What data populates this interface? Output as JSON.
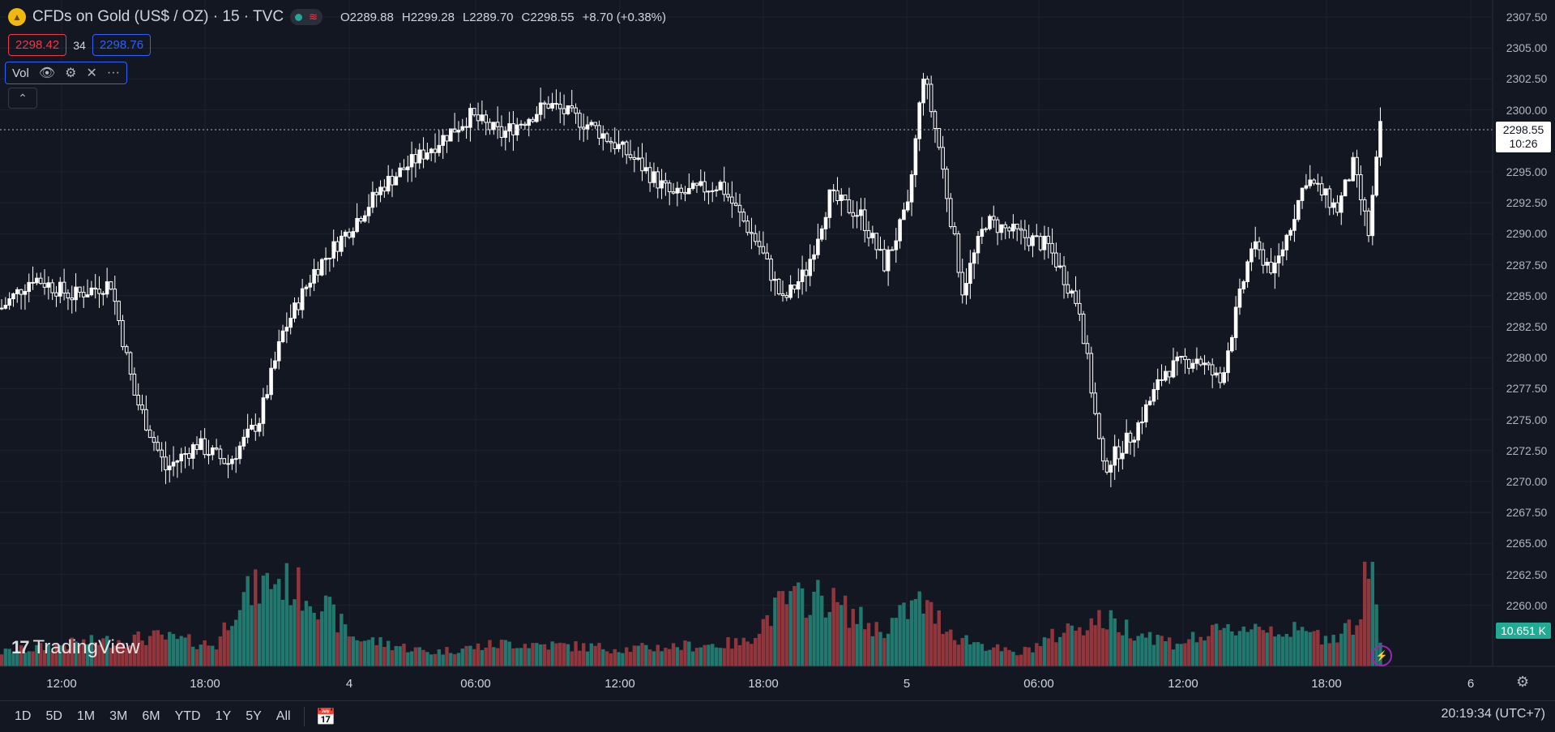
{
  "header": {
    "title": "CFDs on Gold (US$ / OZ) · 15 · TVC",
    "ohlc": {
      "o_label": "O",
      "o": "2289.88",
      "h_label": "H",
      "h": "2299.28",
      "l_label": "L",
      "l": "2289.70",
      "c_label": "C",
      "c": "2298.55",
      "change": "+8.70 (+0.38%)"
    }
  },
  "quote": {
    "bid": "2298.42",
    "spread": "34",
    "ask": "2298.76"
  },
  "volume_legend": {
    "label": "Vol",
    "icons": [
      "eye-icon",
      "settings-icon",
      "close-icon",
      "more-icon"
    ]
  },
  "price_axis": {
    "labels": [
      "2307.50",
      "2305.00",
      "2302.50",
      "2300.00",
      "2295.00",
      "2292.50",
      "2290.00",
      "2287.50",
      "2285.00",
      "2282.50",
      "2280.00",
      "2277.50",
      "2275.00",
      "2272.50",
      "2270.00",
      "2267.50",
      "2265.00",
      "2262.50",
      "2260.00"
    ],
    "current_price": "2298.55",
    "countdown": "10:26",
    "volume_value": "10.651 K"
  },
  "time_axis": {
    "labels": [
      "12:00",
      "18:00",
      "4",
      "06:00",
      "12:00",
      "18:00",
      "5",
      "06:00",
      "12:00",
      "18:00",
      "6"
    ]
  },
  "bottom_bar": {
    "ranges": [
      "1D",
      "5D",
      "1M",
      "3M",
      "6M",
      "YTD",
      "1Y",
      "5Y",
      "All"
    ],
    "clock": "20:19:34 (UTC+7)"
  },
  "branding": {
    "logo_text": "TradingView",
    "logo_mark": "17"
  },
  "colors": {
    "up": "#26a69a",
    "down": "#f23645",
    "candle": "#ffffff",
    "background": "#131722",
    "vol_up": "#22786e",
    "vol_down": "#92363d"
  },
  "chart_data": {
    "type": "candlestick",
    "title": "CFDs on Gold (US$ / OZ) · 15 · TVC",
    "ylim": [
      2256,
      2308
    ],
    "x_range": [
      "12:00",
      "6"
    ],
    "close_path": [
      {
        "t": 0,
        "p": 2284.0
      },
      {
        "t": 8,
        "p": 2286.5
      },
      {
        "t": 18,
        "p": 2285.0
      },
      {
        "t": 28,
        "p": 2286.0
      },
      {
        "t": 34,
        "p": 2277.0
      },
      {
        "t": 42,
        "p": 2271.0
      },
      {
        "t": 50,
        "p": 2273.0
      },
      {
        "t": 58,
        "p": 2271.5
      },
      {
        "t": 66,
        "p": 2275.0
      },
      {
        "t": 72,
        "p": 2282.0
      },
      {
        "t": 80,
        "p": 2287.0
      },
      {
        "t": 88,
        "p": 2290.0
      },
      {
        "t": 98,
        "p": 2294.0
      },
      {
        "t": 108,
        "p": 2296.5
      },
      {
        "t": 120,
        "p": 2299.5
      },
      {
        "t": 128,
        "p": 2298.0
      },
      {
        "t": 140,
        "p": 2300.5
      },
      {
        "t": 152,
        "p": 2298.5
      },
      {
        "t": 162,
        "p": 2296.0
      },
      {
        "t": 172,
        "p": 2293.0
      },
      {
        "t": 184,
        "p": 2294.0
      },
      {
        "t": 194,
        "p": 2289.0
      },
      {
        "t": 200,
        "p": 2284.5
      },
      {
        "t": 206,
        "p": 2287.0
      },
      {
        "t": 212,
        "p": 2293.0
      },
      {
        "t": 220,
        "p": 2291.5
      },
      {
        "t": 226,
        "p": 2287.5
      },
      {
        "t": 232,
        "p": 2292.0
      },
      {
        "t": 236,
        "p": 2303.0
      },
      {
        "t": 240,
        "p": 2297.0
      },
      {
        "t": 246,
        "p": 2285.5
      },
      {
        "t": 252,
        "p": 2291.0
      },
      {
        "t": 260,
        "p": 2290.0
      },
      {
        "t": 268,
        "p": 2289.0
      },
      {
        "t": 276,
        "p": 2284.0
      },
      {
        "t": 282,
        "p": 2271.0
      },
      {
        "t": 290,
        "p": 2274.0
      },
      {
        "t": 298,
        "p": 2279.0
      },
      {
        "t": 306,
        "p": 2280.0
      },
      {
        "t": 312,
        "p": 2278.0
      },
      {
        "t": 320,
        "p": 2289.0
      },
      {
        "t": 326,
        "p": 2287.0
      },
      {
        "t": 334,
        "p": 2294.5
      },
      {
        "t": 342,
        "p": 2292.0
      },
      {
        "t": 346,
        "p": 2295.5
      },
      {
        "t": 350,
        "p": 2290.0
      },
      {
        "t": 353,
        "p": 2298.5
      }
    ],
    "volume_ylim": [
      0,
      1
    ],
    "volume_profile": [
      {
        "t": 0,
        "v": 0.12
      },
      {
        "t": 20,
        "v": 0.2
      },
      {
        "t": 40,
        "v": 0.25
      },
      {
        "t": 55,
        "v": 0.18
      },
      {
        "t": 60,
        "v": 0.55
      },
      {
        "t": 70,
        "v": 0.75
      },
      {
        "t": 80,
        "v": 0.6
      },
      {
        "t": 90,
        "v": 0.25
      },
      {
        "t": 110,
        "v": 0.12
      },
      {
        "t": 130,
        "v": 0.2
      },
      {
        "t": 160,
        "v": 0.15
      },
      {
        "t": 190,
        "v": 0.2
      },
      {
        "t": 200,
        "v": 0.55
      },
      {
        "t": 210,
        "v": 0.6
      },
      {
        "t": 225,
        "v": 0.3
      },
      {
        "t": 235,
        "v": 0.55
      },
      {
        "t": 245,
        "v": 0.25
      },
      {
        "t": 260,
        "v": 0.1
      },
      {
        "t": 275,
        "v": 0.35
      },
      {
        "t": 282,
        "v": 0.4
      },
      {
        "t": 300,
        "v": 0.2
      },
      {
        "t": 320,
        "v": 0.35
      },
      {
        "t": 340,
        "v": 0.25
      },
      {
        "t": 348,
        "v": 0.4
      },
      {
        "t": 350,
        "v": 1.0
      },
      {
        "t": 353,
        "v": 0.2
      }
    ]
  }
}
